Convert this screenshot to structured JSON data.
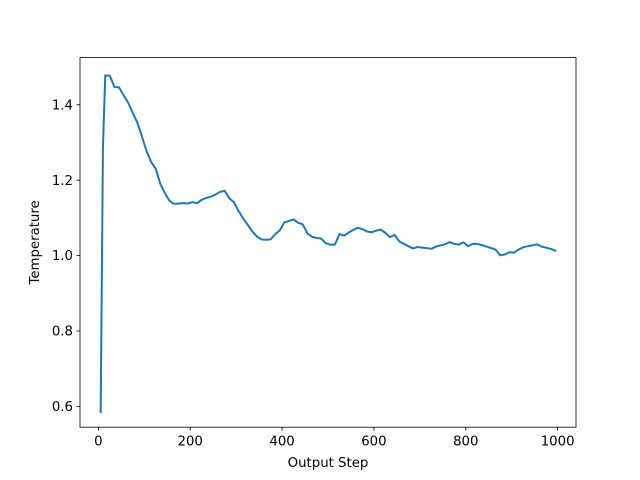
{
  "chart_data": {
    "type": "line",
    "title": "",
    "xlabel": "Output Step",
    "ylabel": "Temperature",
    "xlim": [
      -40,
      1040
    ],
    "ylim": [
      0.545,
      1.525
    ],
    "xticks": [
      0,
      200,
      400,
      600,
      800,
      1000
    ],
    "xtick_labels": [
      "0",
      "200",
      "400",
      "600",
      "800",
      "1000"
    ],
    "yticks": [
      0.6,
      0.8,
      1.0,
      1.2,
      1.4
    ],
    "ytick_labels": [
      "0.6",
      "0.8",
      "1.0",
      "1.2",
      "1.4"
    ],
    "grid": false,
    "legend": "none",
    "series": [
      {
        "color": "#1f77b4",
        "x": [
          5,
          10,
          15,
          25,
          35,
          45,
          55,
          65,
          75,
          85,
          95,
          105,
          115,
          125,
          135,
          145,
          155,
          165,
          175,
          185,
          195,
          205,
          215,
          225,
          235,
          245,
          255,
          265,
          275,
          285,
          295,
          305,
          315,
          325,
          335,
          345,
          355,
          365,
          375,
          385,
          395,
          405,
          415,
          425,
          435,
          445,
          455,
          465,
          475,
          485,
          495,
          505,
          515,
          525,
          535,
          545,
          555,
          565,
          575,
          585,
          595,
          605,
          615,
          625,
          635,
          645,
          655,
          665,
          675,
          685,
          695,
          705,
          715,
          725,
          735,
          745,
          755,
          765,
          775,
          785,
          795,
          805,
          815,
          825,
          835,
          845,
          855,
          865,
          875,
          885,
          895,
          905,
          915,
          925,
          935,
          945,
          955,
          965,
          975,
          985,
          995
        ],
        "y": [
          0.585,
          1.29,
          1.478,
          1.477,
          1.447,
          1.446,
          1.425,
          1.405,
          1.378,
          1.352,
          1.315,
          1.277,
          1.248,
          1.23,
          1.19,
          1.165,
          1.145,
          1.137,
          1.138,
          1.139,
          1.138,
          1.142,
          1.139,
          1.148,
          1.153,
          1.156,
          1.162,
          1.169,
          1.172,
          1.152,
          1.142,
          1.119,
          1.099,
          1.082,
          1.064,
          1.051,
          1.043,
          1.042,
          1.043,
          1.057,
          1.067,
          1.088,
          1.092,
          1.096,
          1.087,
          1.083,
          1.059,
          1.05,
          1.047,
          1.045,
          1.033,
          1.029,
          1.029,
          1.057,
          1.053,
          1.061,
          1.068,
          1.074,
          1.07,
          1.064,
          1.062,
          1.066,
          1.069,
          1.06,
          1.049,
          1.055,
          1.038,
          1.031,
          1.025,
          1.019,
          1.023,
          1.021,
          1.02,
          1.018,
          1.024,
          1.027,
          1.03,
          1.036,
          1.031,
          1.029,
          1.035,
          1.025,
          1.031,
          1.031,
          1.028,
          1.024,
          1.02,
          1.016,
          1.001,
          1.003,
          1.009,
          1.008,
          1.016,
          1.022,
          1.025,
          1.027,
          1.03,
          1.024,
          1.021,
          1.018,
          1.013
        ]
      }
    ]
  }
}
